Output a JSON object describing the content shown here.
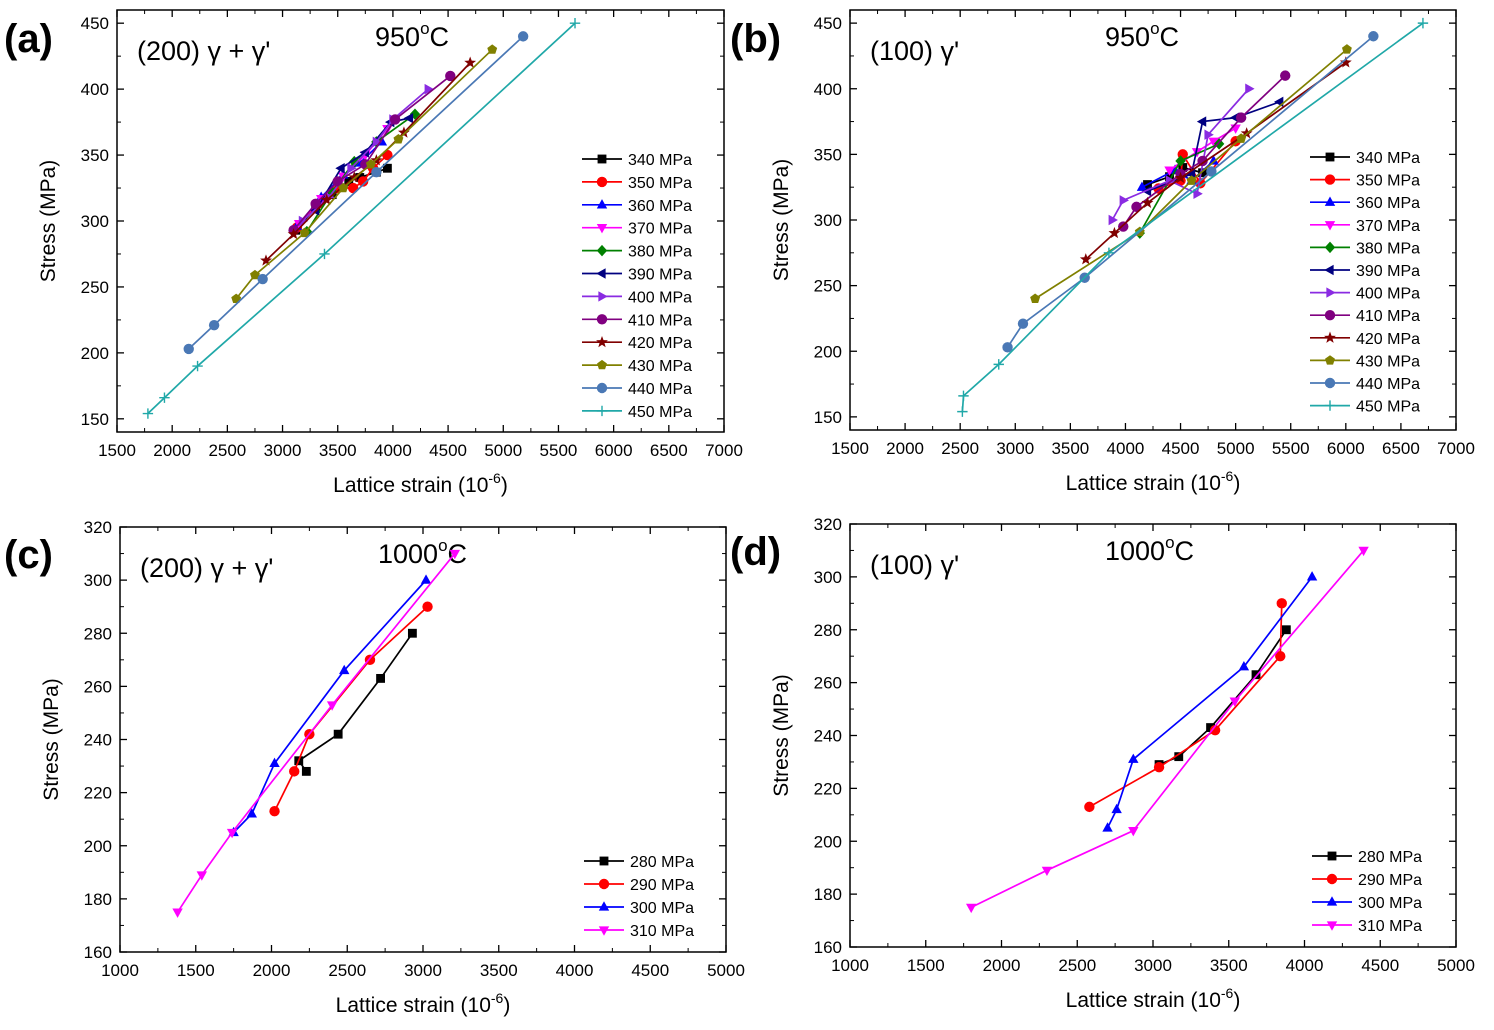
{
  "chart_data": [
    {
      "id": "a",
      "type": "line",
      "panel_label": "(a)",
      "inset_label": "(200) γ + γ'",
      "temperature": "950°C",
      "temperature_parts": {
        "value": "950",
        "sup": "o",
        "unit": "C"
      },
      "xlabel": "Lattice strain (10-6)",
      "xlabel_parts": {
        "text": "Lattice strain (10",
        "sup": "-6",
        "close": ")"
      },
      "ylabel": "Stress (MPa)",
      "xlim": [
        1500,
        7000
      ],
      "ylim": [
        140,
        460
      ],
      "xticks": [
        1500,
        2000,
        2500,
        3000,
        3500,
        4000,
        4500,
        5000,
        5500,
        6000,
        6500,
        7000
      ],
      "yticks": [
        150,
        200,
        250,
        300,
        350,
        400,
        450
      ],
      "legend": "right",
      "series": [
        {
          "name": "340 MPa",
          "color": "#000000",
          "marker": "square",
          "points": [
            [
              3120,
              293
            ],
            [
              3300,
              310
            ],
            [
              3450,
              320
            ],
            [
              3600,
              330
            ],
            [
              3700,
              333
            ],
            [
              3850,
              337
            ],
            [
              3950,
              340
            ]
          ]
        },
        {
          "name": "350 MPa",
          "color": "#ff0000",
          "marker": "circle",
          "points": [
            [
              3130,
              295
            ],
            [
              3320,
              313
            ],
            [
              3500,
              325
            ],
            [
              3640,
              325
            ],
            [
              3730,
              330
            ],
            [
              3820,
              340
            ],
            [
              3950,
              350
            ]
          ]
        },
        {
          "name": "360 MPa",
          "color": "#0000ff",
          "marker": "triangle-up",
          "points": [
            [
              3130,
              296
            ],
            [
              3350,
              318
            ],
            [
              3550,
              335
            ],
            [
              3700,
              344
            ],
            [
              3900,
              360
            ]
          ]
        },
        {
          "name": "370 MPa",
          "color": "#ff00ff",
          "marker": "triangle-down",
          "points": [
            [
              3150,
              298
            ],
            [
              3350,
              317
            ],
            [
              3550,
              334
            ],
            [
              3750,
              350
            ],
            [
              3950,
              370
            ]
          ]
        },
        {
          "name": "380 MPa",
          "color": "#008000",
          "marker": "diamond",
          "points": [
            [
              3220,
              292
            ],
            [
              3450,
              322
            ],
            [
              3650,
              345
            ],
            [
              3850,
              360
            ],
            [
              4200,
              381
            ]
          ]
        },
        {
          "name": "390 MPa",
          "color": "#000080",
          "marker": "triangle-left",
          "points": [
            [
              3300,
              308
            ],
            [
              3530,
              340
            ],
            [
              3750,
              352
            ],
            [
              3980,
              375
            ],
            [
              4150,
              378
            ]
          ]
        },
        {
          "name": "400 MPa",
          "color": "#8a2be2",
          "marker": "triangle-right",
          "points": [
            [
              3180,
              300
            ],
            [
              3420,
              318
            ],
            [
              3620,
              340
            ],
            [
              3850,
              360
            ],
            [
              4000,
              377
            ],
            [
              4320,
              400
            ]
          ]
        },
        {
          "name": "410 MPa",
          "color": "#800080",
          "marker": "circle",
          "points": [
            [
              3100,
              293
            ],
            [
              3300,
              313
            ],
            [
              3500,
              330
            ],
            [
              3750,
              343
            ],
            [
              4020,
              377
            ],
            [
              4520,
              410
            ]
          ]
        },
        {
          "name": "420 MPa",
          "color": "#800000",
          "marker": "star",
          "points": [
            [
              2850,
              270
            ],
            [
              3100,
              290
            ],
            [
              3400,
              316
            ],
            [
              3650,
              333
            ],
            [
              3850,
              346
            ],
            [
              4100,
              367
            ],
            [
              4700,
              420
            ]
          ]
        },
        {
          "name": "430 MPa",
          "color": "#808000",
          "marker": "pentagon",
          "points": [
            [
              2580,
              241
            ],
            [
              2750,
              259
            ],
            [
              3200,
              291
            ],
            [
              3550,
              325
            ],
            [
              3800,
              343
            ],
            [
              4050,
              362
            ],
            [
              4900,
              430
            ]
          ]
        },
        {
          "name": "440 MPa",
          "color": "#4a78b5",
          "marker": "circle",
          "points": [
            [
              2150,
              203
            ],
            [
              2380,
              221
            ],
            [
              2820,
              256
            ],
            [
              3850,
              337
            ],
            [
              5180,
              440
            ]
          ]
        },
        {
          "name": "450 MPa",
          "color": "#20a8a8",
          "marker": "plus",
          "points": [
            [
              1780,
              154
            ],
            [
              1930,
              166
            ],
            [
              2230,
              190
            ],
            [
              3380,
              275
            ],
            [
              5650,
              450
            ]
          ]
        }
      ]
    },
    {
      "id": "b",
      "type": "line",
      "panel_label": "(b)",
      "inset_label": "(100) γ'",
      "temperature": "950°C",
      "temperature_parts": {
        "value": "950",
        "sup": "o",
        "unit": "C"
      },
      "xlabel": "Lattice strain (10-6)",
      "xlabel_parts": {
        "text": "Lattice strain (10",
        "sup": "-6",
        "close": ")"
      },
      "ylabel": "Stress (MPa)",
      "xlim": [
        1500,
        7000
      ],
      "ylim": [
        140,
        460
      ],
      "xticks": [
        1500,
        2000,
        2500,
        3000,
        3500,
        4000,
        4500,
        5000,
        5500,
        6000,
        6500,
        7000
      ],
      "yticks": [
        150,
        200,
        250,
        300,
        350,
        400,
        450
      ],
      "legend": "right",
      "series": [
        {
          "name": "340 MPa",
          "color": "#000000",
          "marker": "square",
          "points": [
            [
              4200,
              327
            ],
            [
              4400,
              333
            ],
            [
              4520,
              340
            ],
            [
              4700,
              336
            ]
          ]
        },
        {
          "name": "350 MPa",
          "color": "#ff0000",
          "marker": "circle",
          "points": [
            [
              4300,
              324
            ],
            [
              4500,
              330
            ],
            [
              4520,
              350
            ],
            [
              4680,
              328
            ],
            [
              5000,
              360
            ]
          ]
        },
        {
          "name": "360 MPa",
          "color": "#0000ff",
          "marker": "triangle-up",
          "points": [
            [
              4150,
              325
            ],
            [
              4450,
              338
            ],
            [
              4600,
              330
            ],
            [
              4800,
              345
            ]
          ]
        },
        {
          "name": "370 MPa",
          "color": "#ff00ff",
          "marker": "triangle-down",
          "points": [
            [
              4400,
              338
            ],
            [
              4650,
              352
            ],
            [
              4800,
              360
            ],
            [
              5000,
              370
            ]
          ]
        },
        {
          "name": "380 MPa",
          "color": "#008000",
          "marker": "diamond",
          "points": [
            [
              4130,
              290
            ],
            [
              4500,
              345
            ],
            [
              4850,
              358
            ]
          ]
        },
        {
          "name": "390 MPa",
          "color": "#000080",
          "marker": "triangle-left",
          "points": [
            [
              4200,
              322
            ],
            [
              4600,
              335
            ],
            [
              4700,
              375
            ],
            [
              5000,
              378
            ],
            [
              5400,
              390
            ]
          ]
        },
        {
          "name": "400 MPa",
          "color": "#8a2be2",
          "marker": "triangle-right",
          "points": [
            [
              3880,
              300
            ],
            [
              3980,
              315
            ],
            [
              4400,
              330
            ],
            [
              4650,
              320
            ],
            [
              4750,
              365
            ],
            [
              5120,
              400
            ]
          ]
        },
        {
          "name": "410 MPa",
          "color": "#800080",
          "marker": "circle",
          "points": [
            [
              3980,
              295
            ],
            [
              4100,
              310
            ],
            [
              4500,
              335
            ],
            [
              4700,
              345
            ],
            [
              5050,
              378
            ],
            [
              5450,
              410
            ]
          ]
        },
        {
          "name": "420 MPa",
          "color": "#800000",
          "marker": "star",
          "points": [
            [
              3640,
              270
            ],
            [
              3900,
              290
            ],
            [
              4200,
              313
            ],
            [
              4500,
              332
            ],
            [
              5100,
              366
            ],
            [
              6000,
              420
            ]
          ]
        },
        {
          "name": "430 MPa",
          "color": "#808000",
          "marker": "pentagon",
          "points": [
            [
              3180,
              240
            ],
            [
              4130,
              291
            ],
            [
              4600,
              330
            ],
            [
              5050,
              362
            ],
            [
              6010,
              430
            ]
          ]
        },
        {
          "name": "440 MPa",
          "color": "#4a78b5",
          "marker": "circle",
          "points": [
            [
              2930,
              203
            ],
            [
              3070,
              221
            ],
            [
              3630,
              256
            ],
            [
              4780,
              337
            ],
            [
              6250,
              440
            ]
          ]
        },
        {
          "name": "450 MPa",
          "color": "#20a8a8",
          "marker": "plus",
          "points": [
            [
              2520,
              154
            ],
            [
              2530,
              166
            ],
            [
              2850,
              190
            ],
            [
              3850,
              275
            ],
            [
              6700,
              450
            ]
          ]
        }
      ]
    },
    {
      "id": "c",
      "type": "line",
      "panel_label": "(c)",
      "inset_label": "(200) γ + γ'",
      "temperature": "1000°C",
      "temperature_parts": {
        "value": "1000",
        "sup": "o",
        "unit": "C"
      },
      "xlabel": "Lattice strain (10-6)",
      "xlabel_parts": {
        "text": "Lattice strain (10",
        "sup": "-6",
        "close": ")"
      },
      "ylabel": "Stress (MPa)",
      "xlim": [
        1000,
        5000
      ],
      "ylim": [
        160,
        320
      ],
      "xticks": [
        1000,
        1500,
        2000,
        2500,
        3000,
        3500,
        4000,
        4500,
        5000
      ],
      "yticks": [
        160,
        180,
        200,
        220,
        240,
        260,
        280,
        300,
        320
      ],
      "legend": "right",
      "series": [
        {
          "name": "280 MPa",
          "color": "#000000",
          "marker": "square",
          "points": [
            [
              2230,
              228
            ],
            [
              2180,
              232
            ],
            [
              2440,
              242
            ],
            [
              2720,
              263
            ],
            [
              2930,
              280
            ]
          ]
        },
        {
          "name": "290 MPa",
          "color": "#ff0000",
          "marker": "circle",
          "points": [
            [
              2020,
              213
            ],
            [
              2150,
              228
            ],
            [
              2250,
              242
            ],
            [
              2650,
              270
            ],
            [
              3030,
              290
            ]
          ]
        },
        {
          "name": "300 MPa",
          "color": "#0000ff",
          "marker": "triangle-up",
          "points": [
            [
              1750,
              205
            ],
            [
              1870,
              212
            ],
            [
              2020,
              231
            ],
            [
              2480,
              266
            ],
            [
              3020,
              300
            ]
          ]
        },
        {
          "name": "310 MPa",
          "color": "#ff00ff",
          "marker": "triangle-down",
          "points": [
            [
              1380,
              175
            ],
            [
              1540,
              189
            ],
            [
              1740,
              205
            ],
            [
              2400,
              253
            ],
            [
              3210,
              310
            ]
          ]
        }
      ]
    },
    {
      "id": "d",
      "type": "line",
      "panel_label": "(d)",
      "inset_label": "(100) γ'",
      "temperature": "1000°C",
      "temperature_parts": {
        "value": "1000",
        "sup": "o",
        "unit": "C"
      },
      "xlabel": "Lattice strain (10-6)",
      "xlabel_parts": {
        "text": "Lattice strain (10",
        "sup": "-6",
        "close": ")"
      },
      "ylabel": "Stress (MPa)",
      "xlim": [
        1000,
        5000
      ],
      "ylim": [
        160,
        320
      ],
      "xticks": [
        1000,
        1500,
        2000,
        2500,
        3000,
        3500,
        4000,
        4500,
        5000
      ],
      "yticks": [
        160,
        180,
        200,
        220,
        240,
        260,
        280,
        300,
        320
      ],
      "legend": "right",
      "series": [
        {
          "name": "280 MPa",
          "color": "#000000",
          "marker": "square",
          "points": [
            [
              3040,
              229
            ],
            [
              3170,
              232
            ],
            [
              3380,
              243
            ],
            [
              3680,
              263
            ],
            [
              3880,
              280
            ]
          ]
        },
        {
          "name": "290 MPa",
          "color": "#ff0000",
          "marker": "circle",
          "points": [
            [
              2580,
              213
            ],
            [
              3040,
              228
            ],
            [
              3410,
              242
            ],
            [
              3840,
              270
            ],
            [
              3850,
              290
            ]
          ]
        },
        {
          "name": "300 MPa",
          "color": "#0000ff",
          "marker": "triangle-up",
          "points": [
            [
              2700,
              205
            ],
            [
              2760,
              212
            ],
            [
              2870,
              231
            ],
            [
              3600,
              266
            ],
            [
              4050,
              300
            ]
          ]
        },
        {
          "name": "310 MPa",
          "color": "#ff00ff",
          "marker": "triangle-down",
          "points": [
            [
              1800,
              175
            ],
            [
              2300,
              189
            ],
            [
              2870,
              204
            ],
            [
              3540,
              253
            ],
            [
              4390,
              310
            ]
          ]
        }
      ]
    }
  ]
}
